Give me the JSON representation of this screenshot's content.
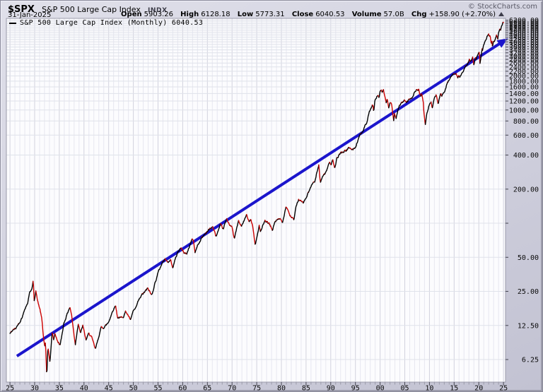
{
  "header": {
    "symbol": "$SPX",
    "name": "S&P 500 Large Cap Index",
    "exchange": "INDX",
    "date": "31-Jan-2025",
    "copyright": "© StockCharts.com",
    "quote": {
      "open_label": "Open",
      "open": "5903.26",
      "high_label": "High",
      "high": "6128.18",
      "low_label": "Low",
      "low": "5773.31",
      "close_label": "Close",
      "close": "6040.53",
      "volume_label": "Volume",
      "volume": "57.0B",
      "chg_label": "Chg",
      "chg": "+158.90 (+2.70%)",
      "chg_direction": "up"
    }
  },
  "legend": {
    "text": "S&P 500 Large Cap Index (Monthly) 6040.53"
  },
  "chart_data": {
    "type": "line",
    "title": "$SPX S&P 500 Large Cap Index (Monthly)",
    "scale": "log",
    "last_close": 6040.53,
    "xlim": [
      1925,
      2026
    ],
    "ylim": [
      4,
      6450
    ],
    "grid": true,
    "colors": {
      "up": "#000000",
      "down": "#cc0000",
      "trendline": "#1b15cc",
      "grid_minor": "#e7e7f0",
      "grid_major": "#d2d2de",
      "grid_h": "#dfe2ea",
      "axis": "#9a9aaa",
      "plot_bg": "#fcfcfe"
    },
    "x_axis": {
      "tick_years": [
        1925,
        1930,
        1935,
        1940,
        1945,
        1950,
        1955,
        1960,
        1965,
        1970,
        1975,
        1980,
        1985,
        1990,
        1995,
        2000,
        2005,
        2010,
        2015,
        2020,
        2025
      ],
      "tick_labels": [
        "25",
        "30",
        "35",
        "40",
        "45",
        "50",
        "55",
        "60",
        "65",
        "70",
        "75",
        "80",
        "85",
        "90",
        "95",
        "00",
        "05",
        "10",
        "15",
        "20",
        "25"
      ]
    },
    "y_axis": {
      "tick_values": [
        6.25,
        12.5,
        25,
        50,
        200,
        400,
        600,
        800,
        1000,
        1200,
        1400,
        1600,
        1800,
        2000,
        2200,
        2400,
        2600,
        2800,
        3000,
        3200,
        3400,
        3600,
        3800,
        4000,
        4200,
        4400,
        4600,
        4800,
        5000,
        5200,
        5400,
        5600,
        5800,
        6000,
        6200
      ],
      "tick_labels": [
        "6.25",
        "12.50",
        "25.00",
        "50.00",
        "200.00",
        "400.00",
        "600.00",
        "800.00",
        "1000.00",
        "1200.00",
        "1400.00",
        "1600.00",
        "1800.00",
        "2000.00",
        "2200.00",
        "2400.00",
        "2600.00",
        "2800.00",
        "3000.00",
        "3200.00",
        "3400.00",
        "3600.00",
        "3800.00",
        "4000.00",
        "4200.00",
        "4400.00",
        "4600.00",
        "4800.00",
        "5000.00",
        "5200.00",
        "5400.00",
        "5600.00",
        "5800.00",
        "6000.00",
        "6200.00"
      ],
      "gridline_values": [
        6.25,
        12.5,
        25,
        50,
        100,
        200,
        400,
        600,
        800,
        1000,
        1200,
        1400,
        1600,
        1800,
        2000,
        2200,
        2400,
        2600,
        2800,
        3000,
        3200,
        3400,
        3600,
        3800,
        4000,
        4200,
        4400,
        4600,
        4800,
        5000,
        5200,
        5400,
        5600,
        5800,
        6000,
        6200
      ]
    },
    "trendline": {
      "color": "#1b15cc",
      "width": 4,
      "arrow": true,
      "start": {
        "year": 1926.4,
        "value": 6.7
      },
      "end": {
        "year": 2025.9,
        "value": 4300
      }
    },
    "series": [
      {
        "name": "S&P 500 Large Cap Index (Monthly)",
        "monthly_close_anchors": [
          [
            1925.0,
            10.6
          ],
          [
            1925.6,
            11.4
          ],
          [
            1926.2,
            11.8
          ],
          [
            1926.5,
            12.5
          ],
          [
            1927.0,
            13.4
          ],
          [
            1927.6,
            15.3
          ],
          [
            1928.0,
            17.5
          ],
          [
            1928.6,
            19.8
          ],
          [
            1929.0,
            24.9
          ],
          [
            1929.45,
            26.0
          ],
          [
            1929.7,
            31.3
          ],
          [
            1929.92,
            20.6
          ],
          [
            1930.25,
            25.3
          ],
          [
            1930.6,
            20.5
          ],
          [
            1931.1,
            17.2
          ],
          [
            1931.45,
            14.3
          ],
          [
            1931.8,
            9.7
          ],
          [
            1932.05,
            8.1
          ],
          [
            1932.2,
            8.9
          ],
          [
            1932.45,
            4.4
          ],
          [
            1932.7,
            8.1
          ],
          [
            1933.1,
            5.9
          ],
          [
            1933.55,
            10.9
          ],
          [
            1933.85,
            9.3
          ],
          [
            1934.1,
            10.7
          ],
          [
            1934.6,
            9.1
          ],
          [
            1935.2,
            8.4
          ],
          [
            1935.9,
            13.0
          ],
          [
            1936.9,
            17.2
          ],
          [
            1937.15,
            18.1
          ],
          [
            1937.5,
            15.4
          ],
          [
            1937.95,
            10.5
          ],
          [
            1938.25,
            8.5
          ],
          [
            1938.85,
            13.1
          ],
          [
            1939.3,
            10.7
          ],
          [
            1939.75,
            12.5
          ],
          [
            1940.4,
            9.3
          ],
          [
            1940.95,
            10.6
          ],
          [
            1941.5,
            10.0
          ],
          [
            1941.95,
            8.7
          ],
          [
            1942.3,
            7.7
          ],
          [
            1942.95,
            9.8
          ],
          [
            1943.5,
            12.1
          ],
          [
            1944.0,
            11.9
          ],
          [
            1944.95,
            13.3
          ],
          [
            1945.95,
            17.4
          ],
          [
            1946.4,
            18.7
          ],
          [
            1946.8,
            14.7
          ],
          [
            1947.4,
            14.6
          ],
          [
            1948.0,
            15.0
          ],
          [
            1948.45,
            16.7
          ],
          [
            1949.0,
            15.2
          ],
          [
            1949.45,
            13.9
          ],
          [
            1949.95,
            16.8
          ],
          [
            1950.5,
            17.7
          ],
          [
            1950.95,
            20.4
          ],
          [
            1951.75,
            23.3
          ],
          [
            1952.95,
            26.6
          ],
          [
            1953.7,
            23.1
          ],
          [
            1954.95,
            36.0
          ],
          [
            1955.9,
            45.4
          ],
          [
            1956.6,
            48.5
          ],
          [
            1957.1,
            44.7
          ],
          [
            1957.55,
            47.9
          ],
          [
            1957.95,
            40.3
          ],
          [
            1958.95,
            55.2
          ],
          [
            1959.6,
            60.5
          ],
          [
            1960.25,
            55.3
          ],
          [
            1960.8,
            53.4
          ],
          [
            1961.9,
            72.6
          ],
          [
            1962.2,
            69.6
          ],
          [
            1962.5,
            54.8
          ],
          [
            1962.95,
            63.1
          ],
          [
            1963.95,
            75.0
          ],
          [
            1964.95,
            84.8
          ],
          [
            1966.05,
            93.3
          ],
          [
            1966.75,
            76.6
          ],
          [
            1967.7,
            96.7
          ],
          [
            1968.2,
            89.1
          ],
          [
            1968.9,
            108.4
          ],
          [
            1969.5,
            97.7
          ],
          [
            1970.0,
            92.1
          ],
          [
            1970.45,
            72.7
          ],
          [
            1971.3,
            104.8
          ],
          [
            1971.9,
            93.5
          ],
          [
            1972.95,
            118.1
          ],
          [
            1973.45,
            104.3
          ],
          [
            1973.8,
            108.3
          ],
          [
            1974.2,
            94.0
          ],
          [
            1974.7,
            63.5
          ],
          [
            1975.5,
            95.2
          ],
          [
            1975.75,
            83.9
          ],
          [
            1976.7,
            105.2
          ],
          [
            1977.5,
            98.8
          ],
          [
            1978.2,
            87.0
          ],
          [
            1978.7,
            103.9
          ],
          [
            1979.75,
            109.3
          ],
          [
            1980.25,
            102.1
          ],
          [
            1980.9,
            140.5
          ],
          [
            1981.3,
            132.8
          ],
          [
            1981.75,
            116.2
          ],
          [
            1982.2,
            111.9
          ],
          [
            1982.55,
            107.1
          ],
          [
            1982.95,
            140.6
          ],
          [
            1983.5,
            162.4
          ],
          [
            1984.4,
            150.6
          ],
          [
            1985.0,
            167.2
          ],
          [
            1985.95,
            207.3
          ],
          [
            1986.5,
            236.1
          ],
          [
            1986.75,
            231.3
          ],
          [
            1987.6,
            329.8
          ],
          [
            1987.78,
            251.8
          ],
          [
            1987.9,
            230.3
          ],
          [
            1988.4,
            262.2
          ],
          [
            1988.95,
            277.7
          ],
          [
            1989.7,
            349.2
          ],
          [
            1990.05,
            329.1
          ],
          [
            1990.4,
            361.2
          ],
          [
            1990.8,
            304.0
          ],
          [
            1991.25,
            375.2
          ],
          [
            1991.95,
            417.1
          ],
          [
            1992.95,
            435.7
          ],
          [
            1993.9,
            466.4
          ],
          [
            1994.25,
            445.8
          ],
          [
            1994.95,
            459.3
          ],
          [
            1995.95,
            615.9
          ],
          [
            1996.55,
            639.9
          ],
          [
            1996.95,
            740.7
          ],
          [
            1997.3,
            757.1
          ],
          [
            1997.75,
            947.3
          ],
          [
            1998.55,
            1120.7
          ],
          [
            1998.7,
            957.3
          ],
          [
            1998.95,
            1229.2
          ],
          [
            1999.55,
            1372.7
          ],
          [
            1999.8,
            1282.7
          ],
          [
            2000.0,
            1469.3
          ],
          [
            2000.25,
            1498.6
          ],
          [
            2000.45,
            1420.6
          ],
          [
            2000.65,
            1517.7
          ],
          [
            2000.95,
            1320.3
          ],
          [
            2001.25,
            1160.3
          ],
          [
            2001.45,
            1255.8
          ],
          [
            2001.75,
            1040.9
          ],
          [
            2002.0,
            1148.1
          ],
          [
            2002.3,
            1147.4
          ],
          [
            2002.75,
            815.3
          ],
          [
            2002.9,
            936.3
          ],
          [
            2003.25,
            848.2
          ],
          [
            2003.95,
            1111.9
          ],
          [
            2004.95,
            1211.9
          ],
          [
            2005.35,
            1156.9
          ],
          [
            2005.95,
            1248.3
          ],
          [
            2006.45,
            1270.1
          ],
          [
            2006.95,
            1418.3
          ],
          [
            2007.45,
            1530.6
          ],
          [
            2007.65,
            1474.0
          ],
          [
            2007.8,
            1549.4
          ],
          [
            2008.05,
            1378.6
          ],
          [
            2008.25,
            1322.7
          ],
          [
            2008.45,
            1400.4
          ],
          [
            2008.75,
            1166.4
          ],
          [
            2008.85,
            968.8
          ],
          [
            2008.95,
            903.3
          ],
          [
            2009.15,
            735.1
          ],
          [
            2009.45,
            919.3
          ],
          [
            2009.95,
            1115.1
          ],
          [
            2010.35,
            1186.7
          ],
          [
            2010.55,
            1030.7
          ],
          [
            2010.95,
            1257.6
          ],
          [
            2011.35,
            1363.6
          ],
          [
            2011.8,
            1131.4
          ],
          [
            2011.95,
            1257.6
          ],
          [
            2012.3,
            1408.5
          ],
          [
            2012.45,
            1310.3
          ],
          [
            2012.95,
            1426.2
          ],
          [
            2013.95,
            1848.4
          ],
          [
            2014.95,
            2058.9
          ],
          [
            2015.4,
            2107.4
          ],
          [
            2015.75,
            1920.0
          ],
          [
            2015.95,
            2043.9
          ],
          [
            2016.15,
            1932.2
          ],
          [
            2016.55,
            2098.9
          ],
          [
            2016.95,
            2238.8
          ],
          [
            2017.95,
            2673.6
          ],
          [
            2018.1,
            2823.8
          ],
          [
            2018.3,
            2640.9
          ],
          [
            2018.75,
            2914.0
          ],
          [
            2018.98,
            2506.9
          ],
          [
            2019.35,
            2945.8
          ],
          [
            2019.45,
            2752.1
          ],
          [
            2019.6,
            2980.4
          ],
          [
            2019.98,
            3230.8
          ],
          [
            2020.1,
            3225.5
          ],
          [
            2020.25,
            2584.6
          ],
          [
            2020.5,
            3044.3
          ],
          [
            2020.65,
            3500.3
          ],
          [
            2020.75,
            3363.0
          ],
          [
            2020.98,
            3756.1
          ],
          [
            2021.45,
            4204.1
          ],
          [
            2021.98,
            4766.2
          ],
          [
            2022.1,
            4515.6
          ],
          [
            2022.3,
            4530.4
          ],
          [
            2022.55,
            3785.4
          ],
          [
            2022.65,
            4130.3
          ],
          [
            2022.78,
            3585.6
          ],
          [
            2022.95,
            4080.1
          ],
          [
            2023.15,
            3970.2
          ],
          [
            2023.6,
            4588.9
          ],
          [
            2023.85,
            4193.8
          ],
          [
            2023.98,
            4769.8
          ],
          [
            2024.3,
            5254.4
          ],
          [
            2024.4,
            5035.7
          ],
          [
            2024.6,
            5522.3
          ],
          [
            2024.78,
            5705.5
          ],
          [
            2024.88,
            6032.4
          ],
          [
            2024.97,
            5881.6
          ],
          [
            2025.08,
            6040.53
          ]
        ]
      }
    ]
  }
}
